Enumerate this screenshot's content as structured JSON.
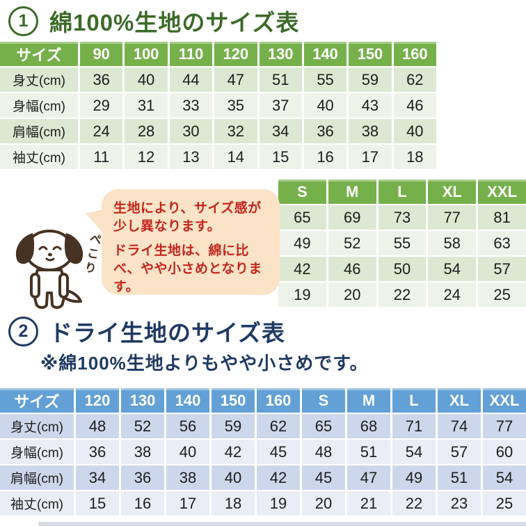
{
  "colors": {
    "cotton_header_green": "#76b04b",
    "cotton_band_dark": "#dce8d2",
    "cotton_band_light": "#eef3ea",
    "dry_header_blue": "#62a0d6",
    "dry_band_dark": "#cdd7eb",
    "dry_band_light": "#e9edf6",
    "title1_green": "#3c6a28",
    "title2_navy": "#1f3a63",
    "callout_red": "#c3261f",
    "bubble_peach": "#fae3c7",
    "dog_brown": "#463223"
  },
  "section1": {
    "number": "1",
    "title": "綿100%生地のサイズ表",
    "table": {
      "header": [
        "サイズ",
        "90",
        "100",
        "110",
        "120",
        "130",
        "140",
        "150",
        "160"
      ],
      "rows": [
        {
          "label": "身丈(cm)",
          "values": [
            36,
            40,
            44,
            47,
            51,
            55,
            59,
            62
          ]
        },
        {
          "label": "身幅(cm)",
          "values": [
            29,
            31,
            33,
            35,
            37,
            40,
            43,
            46
          ]
        },
        {
          "label": "肩幅(cm)",
          "values": [
            24,
            28,
            30,
            32,
            34,
            36,
            38,
            40
          ]
        },
        {
          "label": "袖丈(cm)",
          "values": [
            11,
            12,
            13,
            14,
            15,
            16,
            17,
            18
          ]
        }
      ]
    },
    "adult_table": {
      "header": [
        "S",
        "M",
        "L",
        "XL",
        "XXL"
      ],
      "rows": [
        [
          65,
          69,
          73,
          77,
          81
        ],
        [
          49,
          52,
          55,
          58,
          63
        ],
        [
          42,
          46,
          50,
          54,
          57
        ],
        [
          19,
          20,
          22,
          24,
          25
        ]
      ]
    }
  },
  "callout": {
    "line1": "生地により、サイズ感が少し異なります。",
    "line2": "ドライ生地は、綿に比べ、やや小さめとなります。",
    "dog_caption": "ぺこり"
  },
  "section2": {
    "number": "2",
    "title": "ドライ生地のサイズ表",
    "note": "※綿100%生地よりもやや小さめです。",
    "table": {
      "header": [
        "サイズ",
        "120",
        "130",
        "140",
        "150",
        "160",
        "S",
        "M",
        "L",
        "XL",
        "XXL"
      ],
      "rows": [
        {
          "label": "身丈(cm)",
          "values": [
            48,
            52,
            56,
            59,
            62,
            65,
            68,
            71,
            74,
            77
          ]
        },
        {
          "label": "身幅(cm)",
          "values": [
            36,
            38,
            40,
            42,
            45,
            48,
            51,
            54,
            57,
            60
          ]
        },
        {
          "label": "肩幅(cm)",
          "values": [
            34,
            36,
            38,
            40,
            42,
            45,
            47,
            49,
            51,
            54
          ]
        },
        {
          "label": "袖丈(cm)",
          "values": [
            15,
            16,
            17,
            18,
            19,
            20,
            21,
            22,
            23,
            25
          ]
        }
      ]
    }
  }
}
